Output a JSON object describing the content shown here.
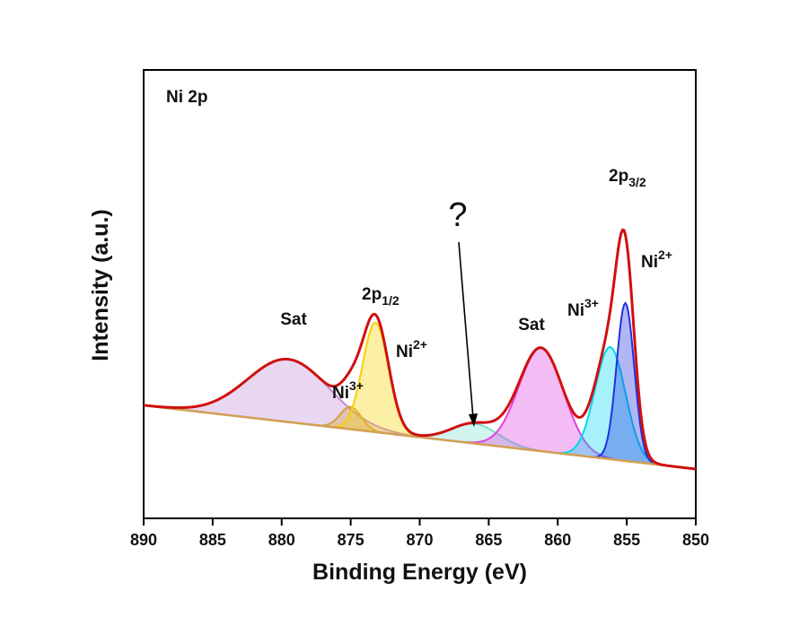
{
  "chart_data": {
    "type": "xps",
    "x_label": "Binding Energy (eV)",
    "y_label": "Intensity (a.u.)",
    "xlim": [
      890,
      850
    ],
    "ylim": [
      0,
      100
    ],
    "xticks": [
      890,
      885,
      880,
      875,
      870,
      865,
      860,
      855,
      850
    ],
    "baseline": {
      "x": [
        890,
        850
      ],
      "values": [
        25.2,
        11
      ],
      "color": "#d4a050"
    },
    "envelope_color": "#d01010",
    "peaks": [
      {
        "center": 879.5,
        "height": 14,
        "fwhm": 7,
        "color": "#c08ad8"
      },
      {
        "center": 875,
        "height": 5,
        "fwhm": 1.8,
        "color": "#d4a040"
      },
      {
        "center": 873.2,
        "height": 24.4,
        "fwhm": 2.2,
        "color": "#f5d000"
      },
      {
        "center": 866,
        "height": 4.4,
        "fwhm": 4,
        "color": "#7ee0d0"
      },
      {
        "center": 861.2,
        "height": 23,
        "fwhm": 3.8,
        "color": "#e040e0"
      },
      {
        "center": 856.2,
        "height": 25,
        "fwhm": 2.6,
        "color": "#00d8f0"
      },
      {
        "center": 855.1,
        "height": 35.2,
        "fwhm": 1.5,
        "color": "#2030e0"
      }
    ],
    "annotations": [
      {
        "text": "Ni 2p"
      },
      {
        "text": "Sat"
      },
      {
        "text": "2p",
        "sub": "1/2"
      },
      {
        "text": "Ni",
        "sup": "2+"
      },
      {
        "text": "Ni",
        "sup": "3+"
      },
      {
        "text": "?"
      },
      {
        "text": "Sat"
      },
      {
        "text": "Ni",
        "sup": "3+"
      },
      {
        "text": "2p",
        "sub": "3/2"
      },
      {
        "text": "Ni",
        "sup": "2+"
      }
    ]
  }
}
